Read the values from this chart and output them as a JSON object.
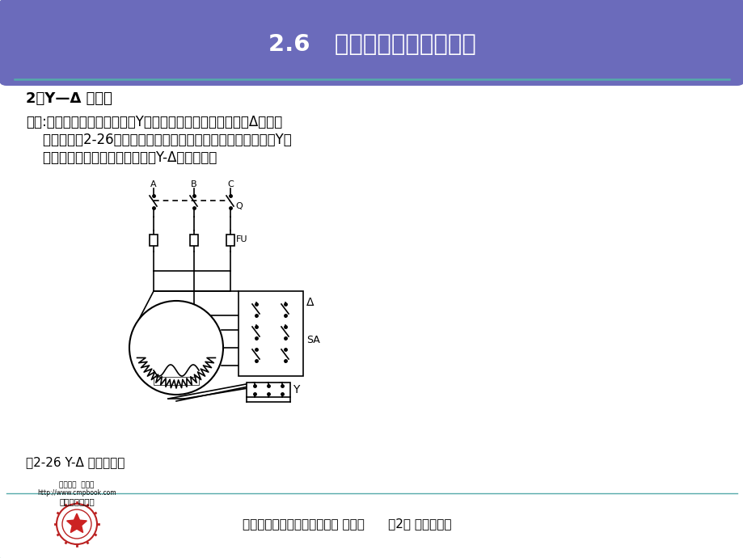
{
  "title": "2.6   三相异步电动机的起动",
  "title_bg_color": "#6B6BBB",
  "title_text_color": "#FFFFFF",
  "body_bg_color": "#D8EEF0",
  "outline_color": "#55AAAA",
  "subtitle": "2、Y—Δ 形起动",
  "para1_line1": "方法:是起动时将定子绕组接成Y形，运行时再将定子绕组接成Δ形，其",
  "para1_line2": "    接线图如图2-26所示。需要指出的是，对于运行时定子绕组为Y形",
  "para1_line3": "    连接的笼型异步电动机则不能用Y-Δ起动方法。",
  "caption": "图2-26 Y-Δ 起动原理图",
  "footer_text": "《电机控制与调速技术》主编 郑建华      第2章 异步电动机",
  "footer_bg": "#D8EEF0"
}
